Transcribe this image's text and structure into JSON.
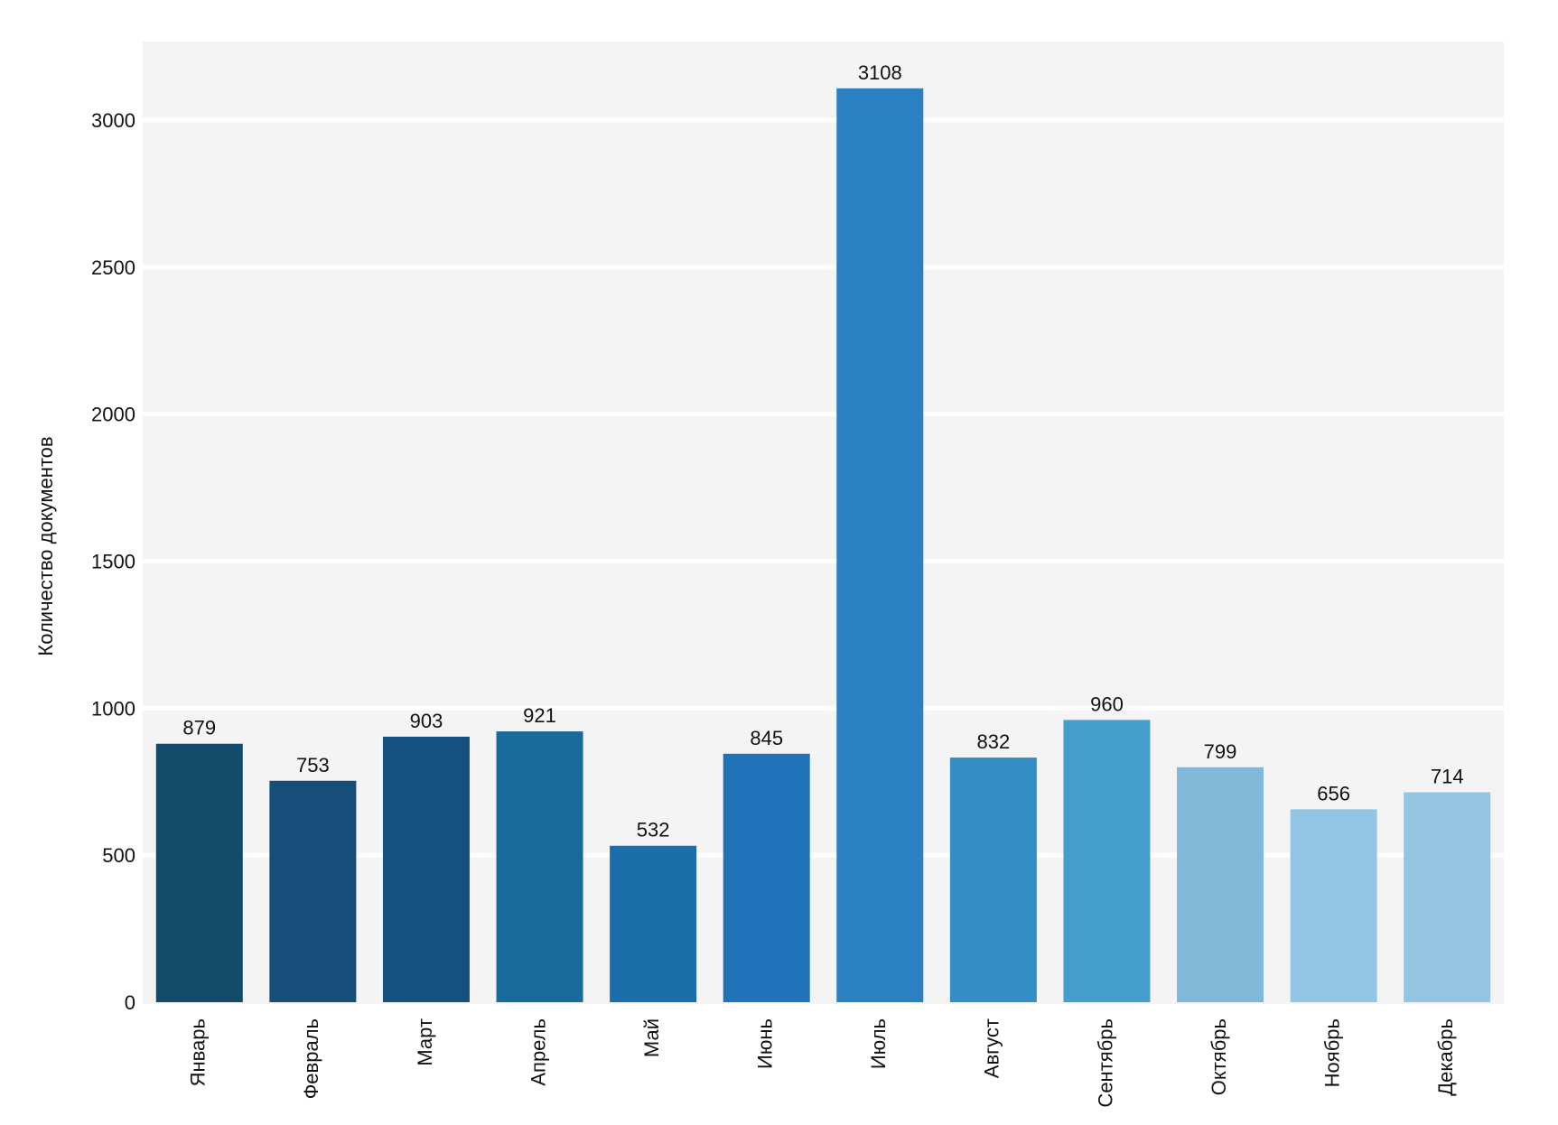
{
  "chart_data": {
    "type": "bar",
    "title": "",
    "xlabel": "",
    "ylabel": "Количество документов",
    "categories": [
      "Январь",
      "Февраль",
      "Март",
      "Апрель",
      "Май",
      "Июнь",
      "Июль",
      "Август",
      "Сентябрь",
      "Октябрь",
      "Ноябрь",
      "Декабрь"
    ],
    "values": [
      879,
      753,
      903,
      921,
      532,
      845,
      3108,
      832,
      960,
      799,
      656,
      714
    ],
    "colors": [
      "#124b69",
      "#154f79",
      "#16507e",
      "#186a9a",
      "#1c6eab",
      "#2173b8",
      "#2a80c0",
      "#348ec5",
      "#449fcd",
      "#81b8d7",
      "#92c5e4",
      "#94c5e3"
    ],
    "ylim": [
      0,
      3250
    ],
    "yticks": [
      0,
      500,
      1000,
      1500,
      2000,
      2500,
      3000
    ],
    "ytick_labels": [
      "0",
      "500",
      "1000",
      "1500",
      "2000",
      "2500",
      "3000"
    ],
    "grid": true,
    "background": "#f4f4f4"
  }
}
